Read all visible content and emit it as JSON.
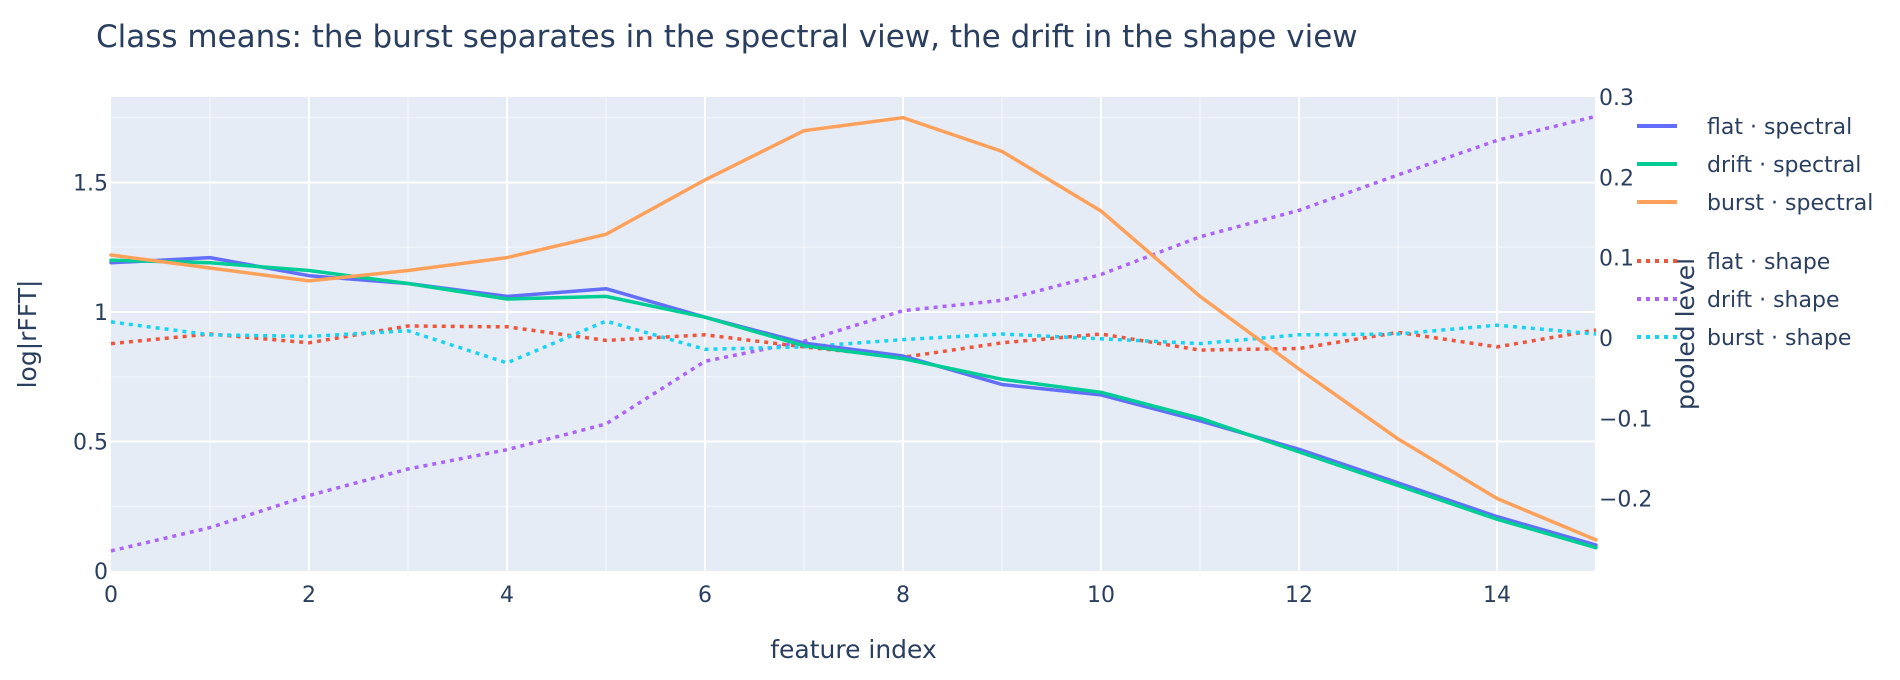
{
  "chart_data": {
    "type": "line",
    "title": "Class means: the burst separates in the spectral view, the drift in the shape view",
    "xlabel": "feature index",
    "ylabel": "log|rFFT|",
    "y2label": "pooled level",
    "xlim": [
      0,
      15
    ],
    "ylim": [
      0,
      1.83
    ],
    "y2lim": [
      -0.29,
      0.3
    ],
    "x_ticks": [
      0,
      2,
      4,
      6,
      8,
      10,
      12,
      14
    ],
    "y_ticks": [
      0,
      0.5,
      1,
      1.5
    ],
    "y_tick_labels": [
      "0",
      "0.5",
      "1",
      "1.5"
    ],
    "y2_ticks": [
      -0.2,
      -0.1,
      0,
      0.1,
      0.2,
      0.3
    ],
    "y2_tick_labels": [
      "−0.2",
      "−0.1",
      "0",
      "0.1",
      "0.2",
      "0.3"
    ],
    "grid": true,
    "legend_position": "right",
    "x": [
      0,
      1,
      2,
      3,
      4,
      5,
      6,
      7,
      8,
      9,
      10,
      11,
      12,
      13,
      14,
      15
    ],
    "series": [
      {
        "name": "flat · spectral",
        "axis": "y",
        "color": "#636efa",
        "dash": "solid",
        "values": [
          1.19,
          1.21,
          1.14,
          1.11,
          1.06,
          1.09,
          0.98,
          0.88,
          0.83,
          0.72,
          0.68,
          0.58,
          0.47,
          0.34,
          0.21,
          0.1
        ]
      },
      {
        "name": "drift · spectral",
        "axis": "y",
        "color": "#00cc96",
        "dash": "solid",
        "values": [
          1.2,
          1.19,
          1.16,
          1.11,
          1.05,
          1.06,
          0.98,
          0.87,
          0.82,
          0.74,
          0.69,
          0.59,
          0.46,
          0.33,
          0.2,
          0.09
        ]
      },
      {
        "name": "burst · spectral",
        "axis": "y",
        "color": "#ffa15a",
        "dash": "solid",
        "values": [
          1.22,
          1.17,
          1.12,
          1.16,
          1.21,
          1.3,
          1.51,
          1.7,
          1.75,
          1.62,
          1.39,
          1.06,
          0.78,
          0.51,
          0.28,
          0.12
        ]
      },
      {
        "name": "flat · shape",
        "axis": "y2",
        "color": "#ef553b",
        "dash": "dot",
        "values": [
          -0.007,
          0.005,
          -0.006,
          0.015,
          0.014,
          -0.003,
          0.004,
          -0.011,
          -0.024,
          -0.006,
          0.005,
          -0.015,
          -0.013,
          0.007,
          -0.011,
          0.01
        ]
      },
      {
        "name": "drift · shape",
        "axis": "y2",
        "color": "#ab63fa",
        "dash": "dot",
        "values": [
          -0.265,
          -0.236,
          -0.196,
          -0.163,
          -0.139,
          -0.107,
          -0.029,
          -0.004,
          0.034,
          0.047,
          0.079,
          0.126,
          0.159,
          0.203,
          0.246,
          0.276
        ]
      },
      {
        "name": "burst · shape",
        "axis": "y2",
        "color": "#19d3f3",
        "dash": "dot",
        "values": [
          0.02,
          0.004,
          0.002,
          0.009,
          -0.031,
          0.021,
          -0.014,
          -0.011,
          -0.002,
          0.005,
          -0.001,
          -0.007,
          0.004,
          0.005,
          0.016,
          0.005
        ]
      }
    ]
  }
}
